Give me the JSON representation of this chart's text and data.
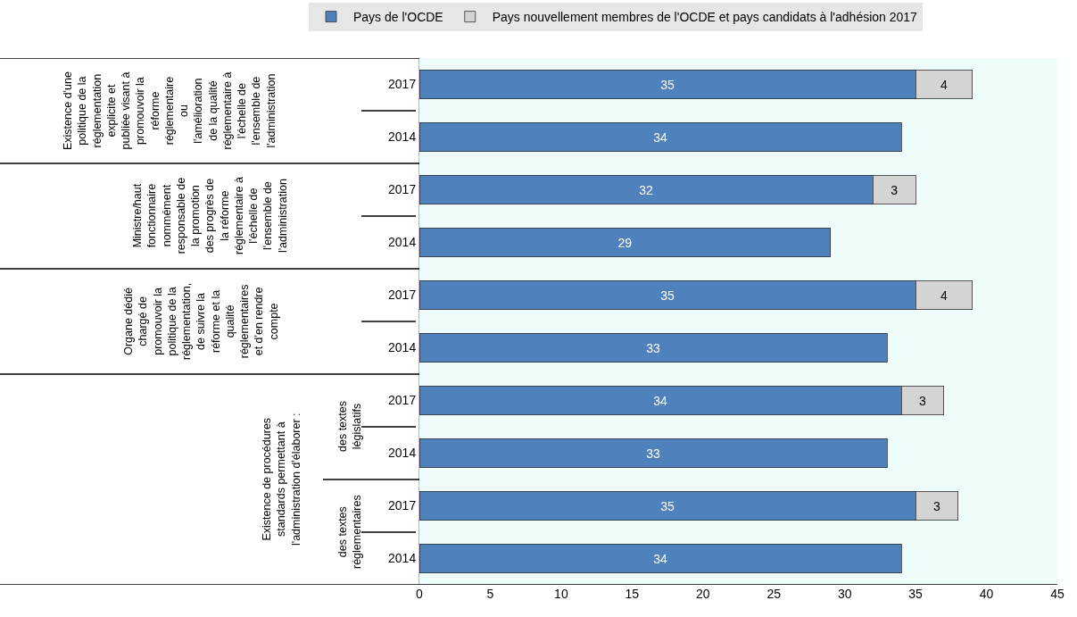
{
  "chart_data": {
    "type": "bar",
    "orientation": "horizontal",
    "stacked": true,
    "data_labels": true,
    "legend": "top",
    "grid": false,
    "categories": [
      "2017",
      "2014",
      "2017",
      "2014",
      "2017",
      "2014",
      "2017",
      "2014",
      "2017",
      "2014"
    ],
    "series": [
      {
        "name": "Pays de l'OCDE",
        "color": "#4f81bd",
        "values": [
          35,
          34,
          32,
          29,
          35,
          33,
          34,
          33,
          35,
          34
        ]
      },
      {
        "name": "Pays nouvellement membres de l'OCDE et pays candidats à l'adhésion 2017",
        "color": "#d4d4d4",
        "values": [
          4,
          null,
          3,
          null,
          4,
          null,
          3,
          null,
          3,
          null
        ]
      }
    ],
    "xlim": [
      0,
      45
    ],
    "xticks": [
      0,
      5,
      10,
      15,
      20,
      25,
      30,
      35,
      40,
      45
    ],
    "annotations": [
      "Existence d'une\npolitique de la\nréglementation\nexplicite et\npubliée visant à\npromouvoir la\nréforme\nréglementaire\nou\nl'amélioration\nde la qualité\nréglementaire à\nl'échelle de\nl'ensemble de\nl'administration",
      "Ministre/haut\nfonctionnaire\nnommément\nresponsable de\nla promotion\ndes progrès de\nla réforme\nréglementaire à\nl'échelle de\nl'ensemble de\nl'administration",
      "Organe dédié\nchargé de\npromouvoir la\npolitique de la\nréglementation,\nde suivre la\nréforme et la\nqualité\nréglementaires\net d'en rendre\ncompte",
      "Existence de procédures\nstandards permettant à\nl'administration d'élaborer :",
      "des textes\nlégislatifs",
      "des textes\nréglementaires"
    ]
  }
}
